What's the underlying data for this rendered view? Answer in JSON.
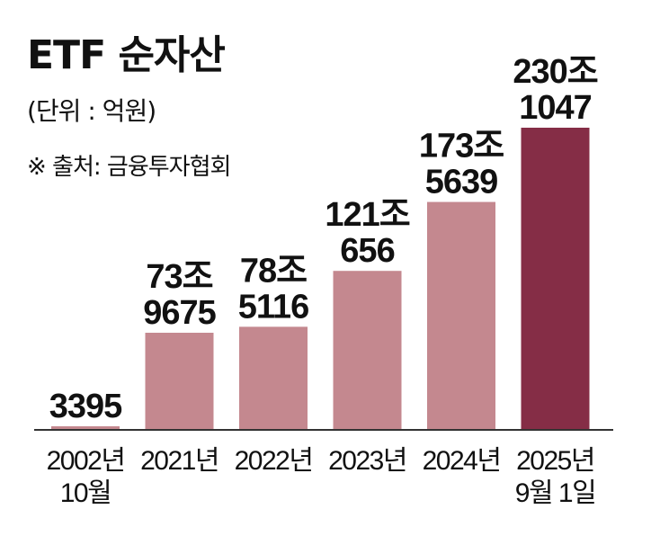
{
  "chart_data": {
    "type": "bar",
    "title": "ETF 순자산",
    "unit_note": "(단위 : 억원)",
    "source": "※ 출처: 금융투자협회",
    "categories": [
      [
        "2002년",
        "10월"
      ],
      [
        "2021년"
      ],
      [
        "2022년"
      ],
      [
        "2023년"
      ],
      [
        "2024년"
      ],
      [
        "2025년",
        "9월 1일"
      ]
    ],
    "values": [
      3395,
      739675,
      785116,
      1210656,
      1735639,
      2301047
    ],
    "data_labels": [
      [
        "3395"
      ],
      [
        "73조",
        "9675"
      ],
      [
        "78조",
        "5116"
      ],
      [
        "121조",
        "656"
      ],
      [
        "173조",
        "5639"
      ],
      [
        "230조",
        "1047"
      ]
    ],
    "bar_colors": [
      "#c4888f",
      "#c4888f",
      "#c4888f",
      "#c4888f",
      "#c4888f",
      "#852d46"
    ],
    "axis_color": "#333333",
    "ylim": [
      0,
      2301047
    ],
    "grid": false
  }
}
